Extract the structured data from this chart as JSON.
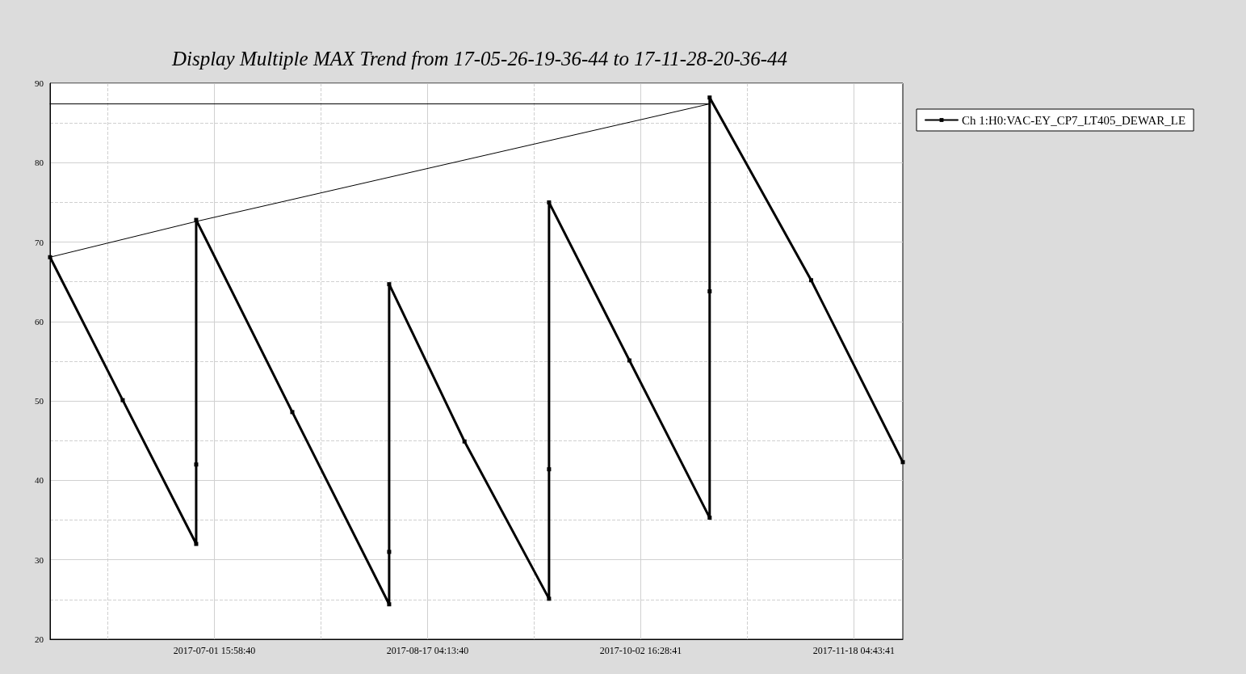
{
  "chart_data": {
    "type": "line",
    "title": "Display Multiple MAX Trend from 17-05-26-19-36-44 to 17-11-28-20-36-44",
    "series": [
      {
        "name": "Ch 1:H0:VAC-EY_CP7_LT405_DEWAR_LE",
        "color": "#000000",
        "x": [
          "2017-05-26T19:36:44",
          "2017-06-11T16:00",
          "2017-06-27T16:42",
          "2017-06-27T16:42",
          "2017-06-27T16:42",
          "2017-07-18T16:00",
          "2017-08-08T19:06",
          "2017-08-08T19:06",
          "2017-08-08T19:06",
          "2017-08-25T05:40",
          "2017-09-12T16:12",
          "2017-09-12T16:12",
          "2017-09-12T16:12",
          "2017-09-30T05:10",
          "2017-10-17T17:12",
          "2017-10-17T17:12",
          "2017-10-17T17:12",
          "2017-11-08T20:48",
          "2017-11-28T20:36:44"
        ],
        "values": [
          68.1,
          50.1,
          32.0,
          42.0,
          72.8,
          48.6,
          24.4,
          31.0,
          64.7,
          44.9,
          25.1,
          41.4,
          75.0,
          55.1,
          35.3,
          63.8,
          88.2,
          65.2,
          42.3
        ]
      },
      {
        "color": "#000000",
        "marker": "none",
        "x": [
          "2017-05-26T19:36:44",
          "2017-10-17T17:12"
        ],
        "values": [
          87.4,
          87.4
        ]
      },
      {
        "color": "#000000",
        "marker": "none",
        "x": [
          "2017-05-26T19:36:44",
          "2017-06-27T16:42",
          "2017-10-17T17:12"
        ],
        "values": [
          68.1,
          72.6,
          87.4
        ]
      }
    ],
    "xlim": [
      "2017-05-26T19:36:44",
      "2017-11-28T20:36:44"
    ],
    "xticks": [
      {
        "value": "2017-06-08T09:51:10",
        "label": null
      },
      {
        "value": "2017-07-01T15:58:40",
        "label": "2017-07-01 15:58:40"
      },
      {
        "value": "2017-07-24T22:06:10",
        "label": null
      },
      {
        "value": "2017-08-17T04:13:40",
        "label": "2017-08-17 04:13:40"
      },
      {
        "value": "2017-09-09T10:21:10",
        "label": null
      },
      {
        "value": "2017-10-02T16:28:41",
        "label": "2017-10-02 16:28:41"
      },
      {
        "value": "2017-10-25T22:36:11",
        "label": null
      },
      {
        "value": "2017-11-18T04:43:41",
        "label": "2017-11-18 04:43:41"
      }
    ],
    "ylim": [
      20,
      90
    ],
    "yticks": [
      20,
      {
        "value": 25,
        "label": null
      },
      30,
      {
        "value": 35,
        "label": null
      },
      40,
      {
        "value": 45,
        "label": null
      },
      50,
      {
        "value": 55,
        "label": null
      },
      60,
      {
        "value": 65,
        "label": null
      },
      70,
      {
        "value": 75,
        "label": null
      },
      80,
      {
        "value": 85,
        "label": null
      },
      90
    ],
    "grid": true,
    "legend": "right",
    "marker": "square",
    "line_style": "solid"
  }
}
